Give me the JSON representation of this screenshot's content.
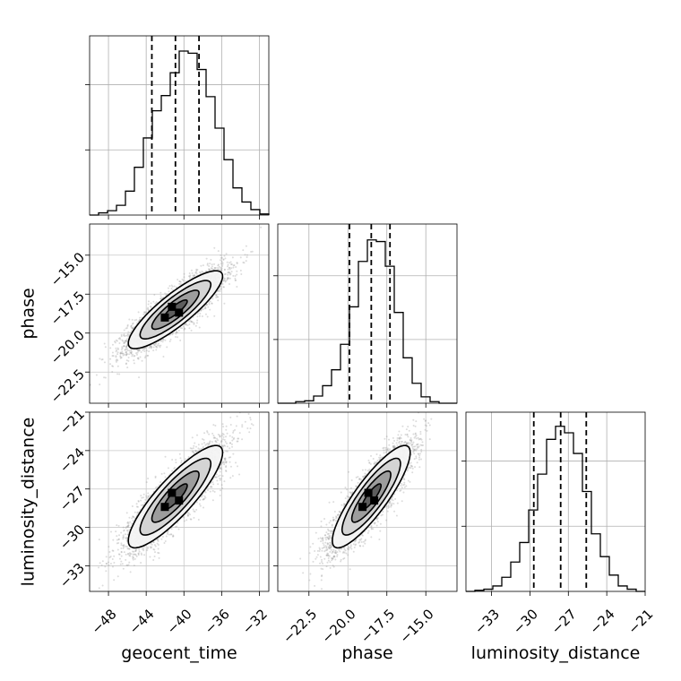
{
  "chart_data": {
    "type": "corner",
    "parameters": [
      "geocent_time",
      "phase",
      "luminosity_distance"
    ],
    "xlabels": [
      "geocent_time",
      "phase",
      "luminosity_distance"
    ],
    "ylabels": [
      "",
      "phase",
      "luminosity_distance"
    ],
    "ranges": [
      [
        -50,
        -31
      ],
      [
        -24.5,
        -13
      ],
      [
        -35,
        -21
      ]
    ],
    "ticks": [
      [
        -48,
        -44,
        -40,
        -36,
        -32
      ],
      [
        -22.5,
        -20.0,
        -17.5,
        -15.0
      ],
      [
        -33,
        -30,
        -27,
        -24,
        -21
      ]
    ],
    "tick_labels": [
      [
        "−48",
        "−44",
        "−40",
        "−36",
        "−32"
      ],
      [
        "−22.5",
        "−20.0",
        "−17.5",
        "−15.0"
      ],
      [
        "−33",
        "−30",
        "−27",
        "−24",
        "−21"
      ]
    ],
    "histograms": [
      {
        "parameter": "geocent_time",
        "bin_edges": [
          -50.0,
          -49.05,
          -48.1,
          -47.15,
          -46.2,
          -45.25,
          -44.3,
          -43.35,
          -42.4,
          -41.45,
          -40.5,
          -39.55,
          -38.6,
          -37.65,
          -36.7,
          -35.75,
          -34.8,
          -33.85,
          -32.9,
          -31.95,
          -31.0
        ],
        "counts": [
          0,
          2,
          4,
          9,
          22,
          44,
          71,
          96,
          110,
          131,
          151,
          149,
          134,
          109,
          80,
          51,
          25,
          12,
          5,
          1
        ],
        "quantiles": [
          -43.4,
          -40.9,
          -38.4
        ],
        "ylim": [
          0,
          165
        ]
      },
      {
        "parameter": "phase",
        "bin_edges": [
          -24.5,
          -23.925,
          -23.35,
          -22.775,
          -22.2,
          -21.625,
          -21.05,
          -20.475,
          -19.9,
          -19.325,
          -18.75,
          -18.175,
          -17.6,
          -17.025,
          -16.45,
          -15.875,
          -15.3,
          -14.725,
          -14.15,
          -13.575,
          -13.0
        ],
        "counts": [
          0,
          0,
          2,
          3,
          9,
          22,
          42,
          74,
          121,
          178,
          205,
          203,
          172,
          114,
          57,
          25,
          8,
          2,
          0,
          0
        ],
        "quantiles": [
          -19.9,
          -18.5,
          -17.3
        ],
        "ylim": [
          0,
          225
        ]
      },
      {
        "parameter": "luminosity_distance",
        "bin_edges": [
          -35.0,
          -34.3,
          -33.6,
          -32.9,
          -32.2,
          -31.5,
          -30.8,
          -30.1,
          -29.4,
          -28.7,
          -28.0,
          -27.3,
          -26.6,
          -25.9,
          -25.2,
          -24.5,
          -23.8,
          -23.1,
          -22.4,
          -21.7,
          -21.0
        ],
        "counts": [
          0,
          1,
          2,
          5,
          13,
          27,
          45,
          75,
          108,
          140,
          152,
          146,
          127,
          92,
          53,
          32,
          15,
          5,
          2,
          0
        ],
        "quantiles": [
          -29.7,
          -27.6,
          -25.6
        ],
        "ylim": [
          0,
          165
        ]
      }
    ],
    "pairs": [
      {
        "x": "geocent_time",
        "y": "phase",
        "mean": [
          -40.9,
          -18.5
        ],
        "sd": [
          2.5,
          1.25
        ],
        "correlation": 0.86,
        "n_samples": 4000
      },
      {
        "x": "geocent_time",
        "y": "luminosity_distance",
        "mean": [
          -40.9,
          -27.6
        ],
        "sd": [
          2.5,
          2.0
        ],
        "correlation": 0.86,
        "n_samples": 4000
      },
      {
        "x": "phase",
        "y": "luminosity_distance",
        "mean": [
          -18.5,
          -27.6
        ],
        "sd": [
          1.25,
          2.0
        ],
        "correlation": 0.86,
        "n_samples": 4000
      }
    ],
    "density_levels_sigma": [
      0.5,
      1.0,
      1.5,
      2.0
    ],
    "grid": true,
    "colors": {
      "hist": "#000000",
      "quantile": "#000000",
      "points": "#9a9a9a",
      "contour": "#000000"
    }
  }
}
